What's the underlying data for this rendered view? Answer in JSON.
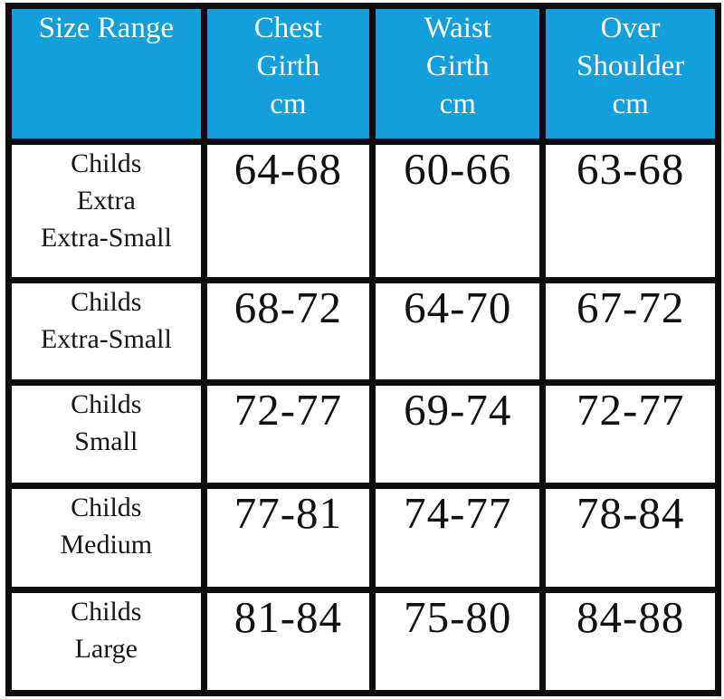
{
  "chart_data": {
    "type": "table",
    "columns": [
      "Size Range",
      "Chest Girth cm",
      "Waist Girth cm",
      "Over Shoulder cm"
    ],
    "rows": [
      [
        "Childs Extra Extra-Small",
        "64-68",
        "60-66",
        "63-68"
      ],
      [
        "Childs Extra-Small",
        "68-72",
        "64-70",
        "67-72"
      ],
      [
        "Childs Small",
        "72-77",
        "69-74",
        "72-77"
      ],
      [
        "Childs Medium",
        "77-81",
        "74-77",
        "78-84"
      ],
      [
        "Childs Large",
        "81-84",
        "75-80",
        "84-88"
      ]
    ],
    "units": "cm",
    "legend_position": "none",
    "grid": true
  },
  "table": {
    "header": {
      "size_range": "Size Range",
      "chest": "Chest\nGirth\ncm",
      "waist": "Waist\nGirth\ncm",
      "shoulder": "Over\nShoulder\ncm"
    },
    "rows": [
      {
        "size": "Childs\nExtra\nExtra-Small",
        "chest": "64-68",
        "waist": "60-66",
        "shoulder": "63-68"
      },
      {
        "size": "Childs\nExtra-Small",
        "chest": "68-72",
        "waist": "64-70",
        "shoulder": "67-72"
      },
      {
        "size": "Childs\nSmall",
        "chest": "72-77",
        "waist": "69-74",
        "shoulder": "72-77"
      },
      {
        "size": "Childs\nMedium",
        "chest": "77-81",
        "waist": "74-77",
        "shoulder": "78-84"
      },
      {
        "size": "Childs\nLarge",
        "chest": "81-84",
        "waist": "75-80",
        "shoulder": "84-88"
      }
    ]
  },
  "colors": {
    "header_bg": "#129fdb",
    "header_text": "#ffffff",
    "border": "#0d0d0d",
    "body_text": "#111111",
    "background": "#ffffff"
  }
}
